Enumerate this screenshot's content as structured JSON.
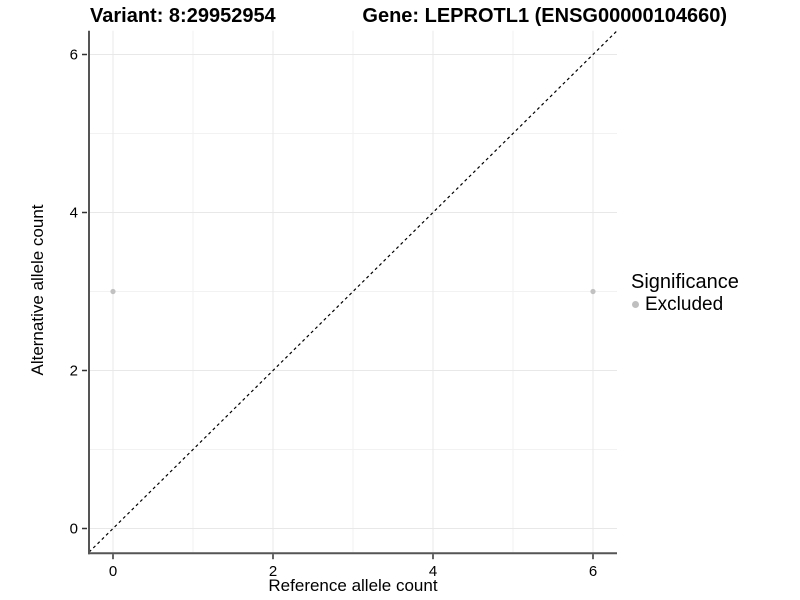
{
  "chart_data": {
    "type": "scatter",
    "titles": {
      "left": "Variant: 8:29952954",
      "right": "Gene: LEPROTL1 (ENSG00000104660)"
    },
    "xlabel": "Reference allele count",
    "ylabel": "Alternative allele count",
    "xlim": [
      -0.3,
      6.3
    ],
    "ylim": [
      -0.3,
      6.3
    ],
    "x_tick_values": [
      0,
      2,
      4,
      6
    ],
    "x_tick_labels": [
      "0",
      "2",
      "4",
      "6"
    ],
    "y_tick_values": [
      0,
      2,
      4,
      6
    ],
    "y_tick_labels": [
      "0",
      "2",
      "4",
      "6"
    ],
    "x_minor_gridlines": [
      1,
      3,
      5
    ],
    "y_minor_gridlines": [
      1,
      3,
      5
    ],
    "grid": true,
    "series": [
      {
        "name": "Excluded",
        "color": "#c1c1c1",
        "marker": "circle",
        "points": [
          [
            0,
            3
          ],
          [
            6,
            3
          ]
        ]
      }
    ],
    "identity_line": {
      "equation": "y = x",
      "style": "dashed",
      "color": "#000000"
    },
    "legend": {
      "title": "Significance",
      "position": "right",
      "entries": [
        {
          "label": "Excluded",
          "color": "#bfbfbf",
          "marker": "circle"
        }
      ]
    },
    "colors": {
      "background": "#ffffff",
      "axis_line": "#555555",
      "tick_mark": "#333333",
      "grid_major": "#e8e8e8",
      "grid_minor": "#f2f2f2",
      "text": "#000000"
    }
  }
}
